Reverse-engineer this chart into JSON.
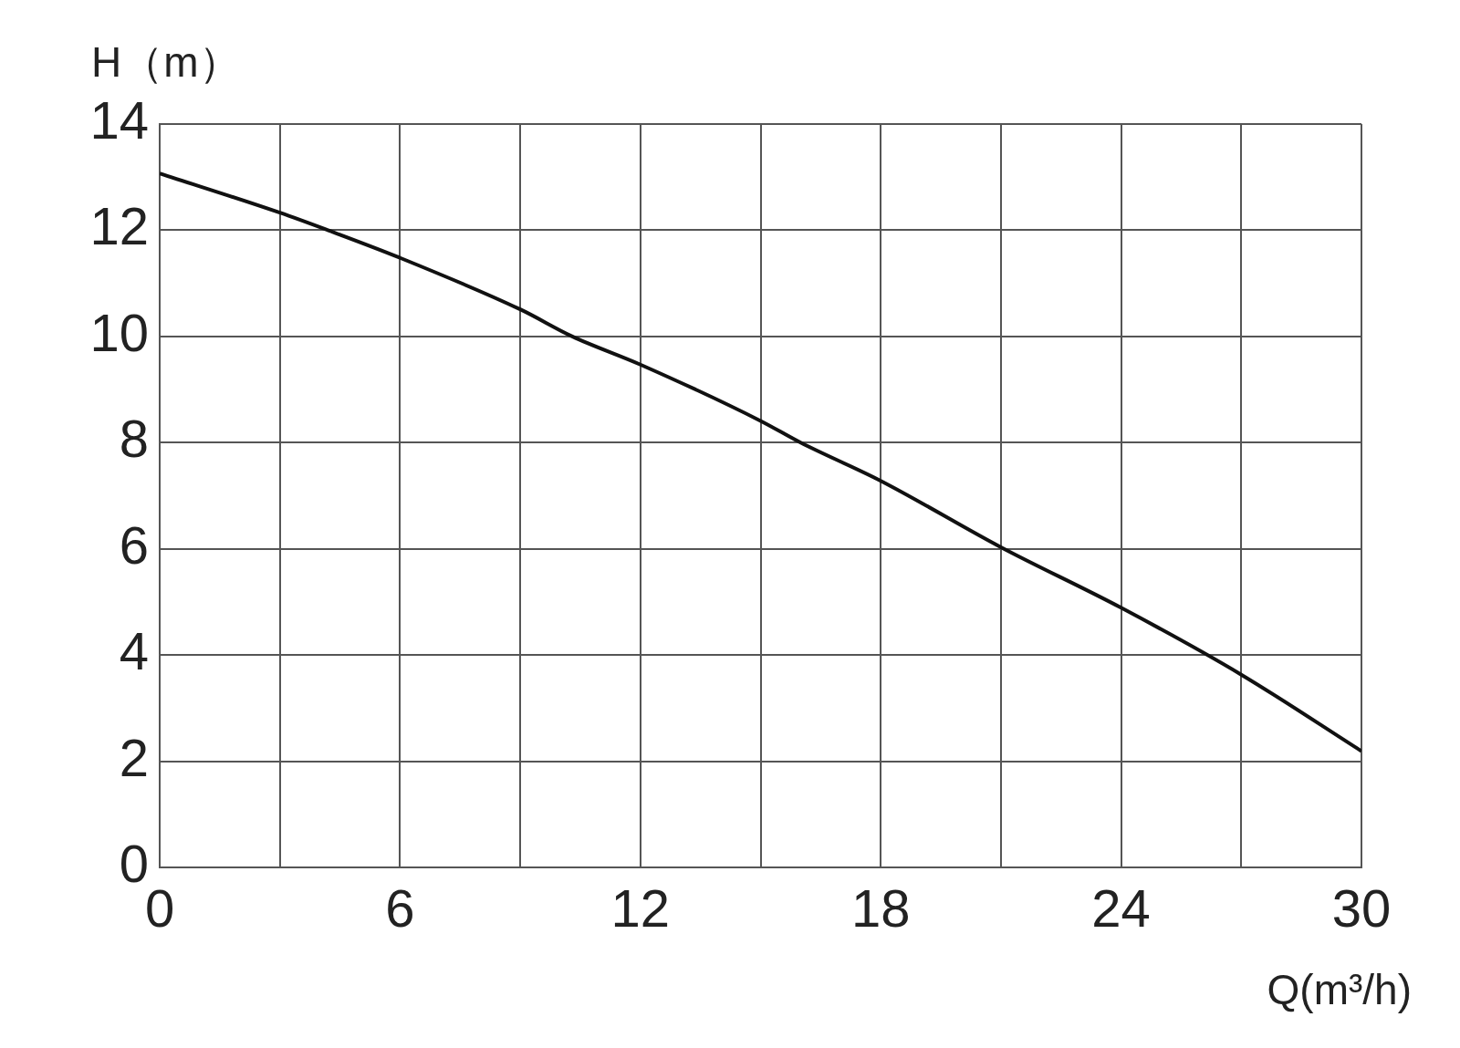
{
  "chart_data": {
    "type": "line",
    "xlabel": "Q(m³/h)",
    "ylabel": "H（m）",
    "series": [
      {
        "color": "#111111",
        "x": [
          0,
          3,
          4.2,
          6,
          9,
          10.3,
          12,
          15,
          16,
          18,
          21,
          24,
          27,
          30
        ],
        "values": [
          13.07,
          12.33,
          12.0,
          11.48,
          10.51,
          10.0,
          9.47,
          8.41,
          8.0,
          7.28,
          6.03,
          4.89,
          3.63,
          2.19
        ]
      }
    ],
    "xlim": [
      0,
      30
    ],
    "xticks": [
      0,
      {
        "value": 3,
        "label": null
      },
      6,
      {
        "value": 9,
        "label": null
      },
      12,
      {
        "value": 15,
        "label": null
      },
      18,
      {
        "value": 21,
        "label": null
      },
      24,
      {
        "value": 27,
        "label": null
      },
      30
    ],
    "ylim": [
      0,
      14
    ],
    "yticks": [
      0,
      2,
      4,
      6,
      8,
      10,
      12,
      14
    ],
    "grid": true,
    "legend": false
  }
}
